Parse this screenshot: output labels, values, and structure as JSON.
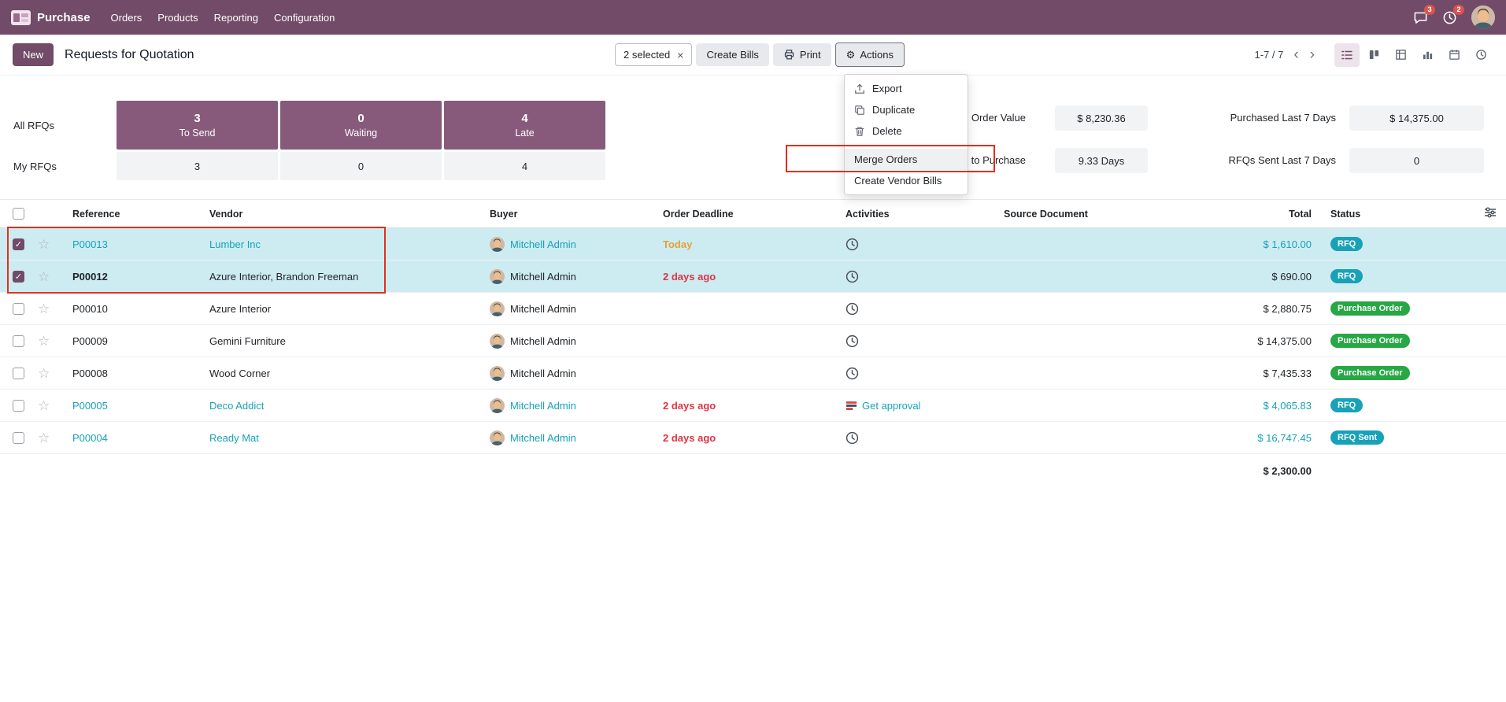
{
  "topbar": {
    "app_name": "Purchase",
    "menus": [
      "Orders",
      "Products",
      "Reporting",
      "Configuration"
    ],
    "messages_badge": "3",
    "activities_badge": "2"
  },
  "control_panel": {
    "new_button": "New",
    "title": "Requests for Quotation",
    "selected_count": "2 selected",
    "create_bills_button": "Create Bills",
    "print_button": "Print",
    "actions_button": "Actions",
    "pager": "1-7 / 7"
  },
  "actions_menu": {
    "items": [
      "Export",
      "Duplicate",
      "Delete",
      "Merge Orders",
      "Create Vendor Bills"
    ],
    "highlighted_item": "Merge Orders"
  },
  "icons": {
    "gear": "⚙",
    "close": "×",
    "star": "☆",
    "chevron_left": "‹",
    "chevron_right": "›",
    "check": "✓"
  },
  "dashboard": {
    "row_labels": {
      "all": "All RFQs",
      "my": "My RFQs"
    },
    "kpis": [
      {
        "label": "To Send",
        "all": "3",
        "my": "3"
      },
      {
        "label": "Waiting",
        "all": "0",
        "my": "0"
      },
      {
        "label": "Late",
        "all": "4",
        "my": "4"
      }
    ],
    "metrics": [
      {
        "label": "Order Value",
        "value": "$ 8,230.36"
      },
      {
        "label": "Purchased Last 7 Days",
        "value": "$ 14,375.00"
      },
      {
        "label": "to Purchase",
        "value": "9.33 Days"
      },
      {
        "label": "RFQs Sent Last 7 Days",
        "value": "0"
      }
    ]
  },
  "colors": {
    "brand": "#714B67",
    "kpi_box": "#875A7B",
    "info": "#17a2b8",
    "success": "#28a745",
    "danger": "#dc3545",
    "warning": "#e5a138",
    "selected_row": "#cdecf1",
    "annotation": "#e0301e"
  },
  "table": {
    "headers": {
      "reference": "Reference",
      "vendor": "Vendor",
      "buyer": "Buyer",
      "deadline": "Order Deadline",
      "activities": "Activities",
      "source": "Source Document",
      "total": "Total",
      "status": "Status"
    },
    "rows": [
      {
        "reference": "P00013",
        "vendor": "Lumber Inc",
        "buyer": "Mitchell Admin",
        "deadline": "Today",
        "deadline_style": "warning",
        "activity": "clock",
        "activity_label": "",
        "source": "",
        "total": "$ 1,610.00",
        "status": "RFQ",
        "status_style": "info",
        "selected": true,
        "decoration": "info",
        "ref_bold": false
      },
      {
        "reference": "P00012",
        "vendor": "Azure Interior, Brandon Freeman",
        "buyer": "Mitchell Admin",
        "deadline": "2 days ago",
        "deadline_style": "danger",
        "activity": "clock",
        "activity_label": "",
        "source": "",
        "total": "$ 690.00",
        "status": "RFQ",
        "status_style": "info",
        "selected": true,
        "decoration": "",
        "ref_bold": true
      },
      {
        "reference": "P00010",
        "vendor": "Azure Interior",
        "buyer": "Mitchell Admin",
        "deadline": "",
        "deadline_style": "",
        "activity": "clock",
        "activity_label": "",
        "source": "",
        "total": "$ 2,880.75",
        "status": "Purchase Order",
        "status_style": "success",
        "selected": false,
        "decoration": "",
        "ref_bold": false
      },
      {
        "reference": "P00009",
        "vendor": "Gemini Furniture",
        "buyer": "Mitchell Admin",
        "deadline": "",
        "deadline_style": "",
        "activity": "clock",
        "activity_label": "",
        "source": "",
        "total": "$ 14,375.00",
        "status": "Purchase Order",
        "status_style": "success",
        "selected": false,
        "decoration": "",
        "ref_bold": false
      },
      {
        "reference": "P00008",
        "vendor": "Wood Corner",
        "buyer": "Mitchell Admin",
        "deadline": "",
        "deadline_style": "",
        "activity": "clock",
        "activity_label": "",
        "source": "",
        "total": "$ 7,435.33",
        "status": "Purchase Order",
        "status_style": "success",
        "selected": false,
        "decoration": "",
        "ref_bold": false
      },
      {
        "reference": "P00005",
        "vendor": "Deco Addict",
        "buyer": "Mitchell Admin",
        "deadline": "2 days ago",
        "deadline_style": "danger",
        "activity": "approval",
        "activity_label": "Get approval",
        "source": "",
        "total": "$ 4,065.83",
        "status": "RFQ",
        "status_style": "info",
        "selected": false,
        "decoration": "info",
        "ref_bold": false
      },
      {
        "reference": "P00004",
        "vendor": "Ready Mat",
        "buyer": "Mitchell Admin",
        "deadline": "2 days ago",
        "deadline_style": "danger",
        "activity": "clock",
        "activity_label": "",
        "source": "",
        "total": "$ 16,747.45",
        "status": "RFQ Sent",
        "status_style": "info",
        "selected": false,
        "decoration": "info",
        "ref_bold": false
      }
    ],
    "footer_total": "$ 2,300.00"
  }
}
